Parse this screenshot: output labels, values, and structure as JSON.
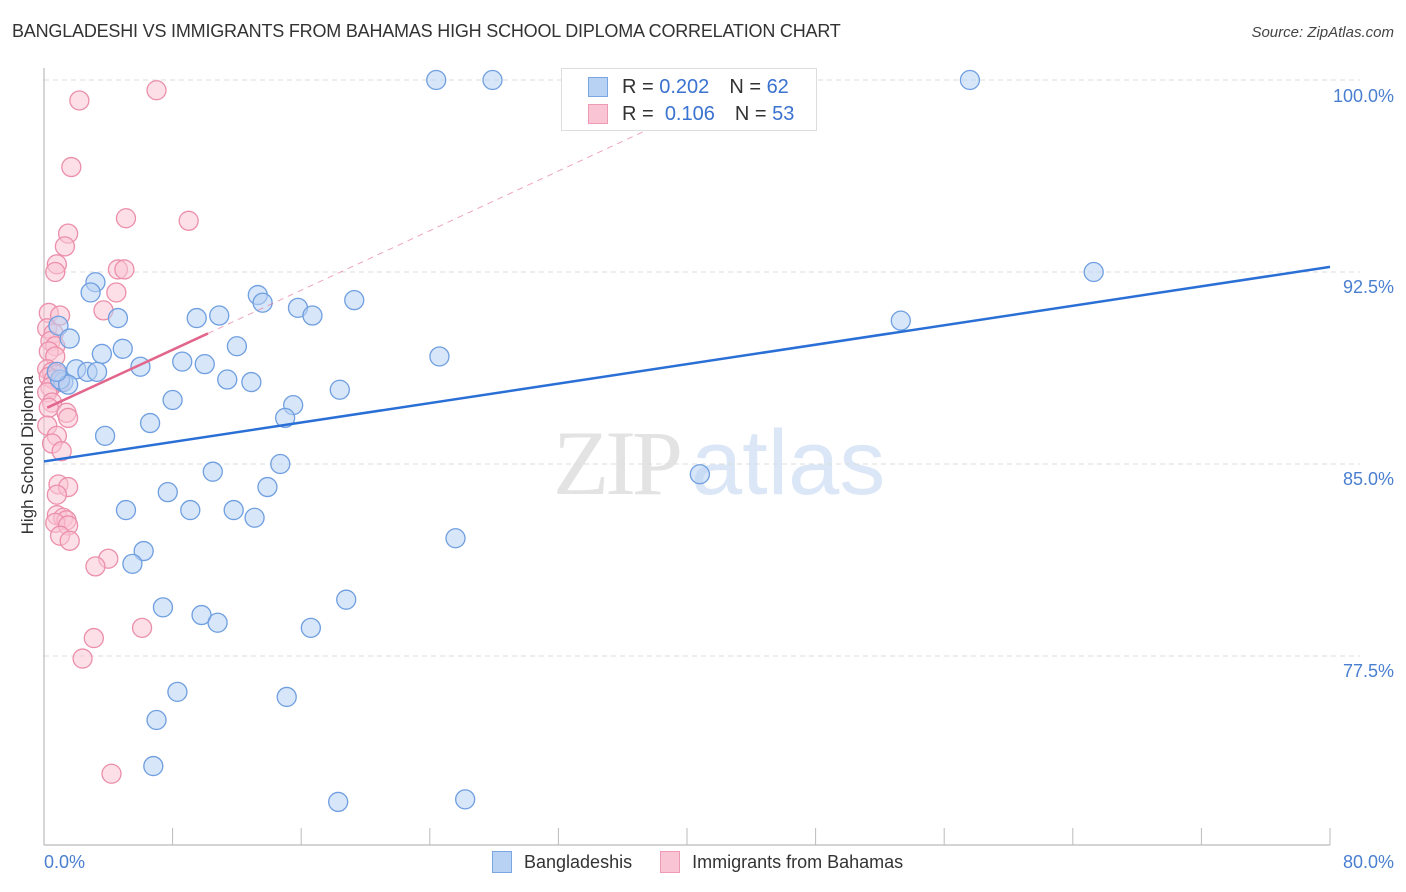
{
  "header": {
    "title": "BANGLADESHI VS IMMIGRANTS FROM BAHAMAS HIGH SCHOOL DIPLOMA CORRELATION CHART",
    "source": "Source: ZipAtlas.com"
  },
  "watermark": {
    "zip": "ZIP",
    "atlas": "atlas"
  },
  "legend": {
    "rows": [
      {
        "r_label": "R =",
        "r_value": "0.202",
        "n_label": "N =",
        "n_value": "62",
        "color": "#b8d2f4"
      },
      {
        "r_label": "R =",
        "r_value": "0.106",
        "n_label": "N =",
        "n_value": "53",
        "color": "#f9c4d4"
      }
    ],
    "bottom": [
      {
        "label": "Bangladeshis",
        "color": "#b8d2f4"
      },
      {
        "label": "Immigrants from Bahamas",
        "color": "#f9c4d4"
      }
    ]
  },
  "axes": {
    "ylabel": "High School Diploma",
    "yticks": [
      "100.0%",
      "92.5%",
      "85.0%",
      "77.5%"
    ],
    "xticks": [
      "0.0%",
      "80.0%"
    ]
  },
  "colors": {
    "blue_fill": "#b8d2f4",
    "blue_stroke": "#6f9fe0",
    "blue_line": "#2a6fd6",
    "pink_fill": "#f9c4d4",
    "pink_stroke": "#ec8fab",
    "pink_line": "#e2658c",
    "tick_text": "#4a7fd0"
  },
  "chart_data": {
    "type": "scatter",
    "title": "BANGLADESHI VS IMMIGRANTS FROM BAHAMAS HIGH SCHOOL DIPLOMA CORRELATION CHART",
    "xlabel": "",
    "ylabel": "High School Diploma",
    "xlim": [
      0,
      80
    ],
    "ylim": [
      70.5,
      100.5
    ],
    "x_ticks": [
      0,
      80
    ],
    "y_ticks": [
      77.5,
      85.0,
      92.5,
      100.0
    ],
    "grid": "horizontal dashed",
    "legend_position": "top center (R/N box) and bottom center",
    "series": [
      {
        "name": "Bangladeshis",
        "R": 0.202,
        "N": 62,
        "trend": {
          "x": [
            0,
            80
          ],
          "y": [
            85.1,
            92.7
          ]
        },
        "points": [
          [
            24.4,
            100.0
          ],
          [
            27.9,
            100.0
          ],
          [
            57.6,
            100.0
          ],
          [
            65.3,
            92.5
          ],
          [
            53.3,
            90.6
          ],
          [
            3.2,
            92.1
          ],
          [
            2.9,
            91.7
          ],
          [
            4.6,
            90.7
          ],
          [
            0.9,
            90.4
          ],
          [
            1.6,
            89.9
          ],
          [
            3.6,
            89.3
          ],
          [
            4.9,
            89.5
          ],
          [
            2.0,
            88.7
          ],
          [
            2.7,
            88.6
          ],
          [
            1.2,
            88.2
          ],
          [
            6.0,
            88.8
          ],
          [
            8.6,
            89.0
          ],
          [
            10.0,
            88.9
          ],
          [
            9.5,
            90.7
          ],
          [
            10.9,
            90.8
          ],
          [
            13.3,
            91.6
          ],
          [
            13.6,
            91.3
          ],
          [
            15.8,
            91.1
          ],
          [
            16.7,
            90.8
          ],
          [
            19.3,
            91.4
          ],
          [
            12.0,
            89.6
          ],
          [
            11.4,
            88.3
          ],
          [
            12.9,
            88.2
          ],
          [
            18.4,
            87.9
          ],
          [
            24.6,
            89.2
          ],
          [
            8.0,
            87.5
          ],
          [
            15.5,
            87.3
          ],
          [
            15.0,
            86.8
          ],
          [
            6.6,
            86.6
          ],
          [
            3.8,
            86.1
          ],
          [
            10.5,
            84.7
          ],
          [
            14.7,
            85.0
          ],
          [
            13.9,
            84.1
          ],
          [
            7.7,
            83.9
          ],
          [
            9.1,
            83.2
          ],
          [
            5.1,
            83.2
          ],
          [
            11.8,
            83.2
          ],
          [
            13.1,
            82.9
          ],
          [
            25.6,
            82.1
          ],
          [
            40.8,
            84.6
          ],
          [
            6.2,
            81.6
          ],
          [
            5.5,
            81.1
          ],
          [
            18.8,
            79.7
          ],
          [
            7.4,
            79.4
          ],
          [
            9.8,
            79.1
          ],
          [
            10.8,
            78.8
          ],
          [
            16.6,
            78.6
          ],
          [
            8.3,
            76.1
          ],
          [
            15.1,
            75.9
          ],
          [
            7.0,
            75.0
          ],
          [
            6.8,
            73.2
          ],
          [
            18.3,
            71.8
          ],
          [
            26.2,
            71.9
          ],
          [
            1.0,
            88.3
          ],
          [
            1.5,
            88.1
          ],
          [
            0.8,
            88.6
          ],
          [
            3.3,
            88.6
          ]
        ]
      },
      {
        "name": "Immigrants from Bahamas",
        "R": 0.106,
        "N": 53,
        "trend": {
          "x": [
            0.2,
            10.2
          ],
          "y": [
            87.2,
            90.1
          ]
        },
        "trend_extension_dashed": {
          "x": [
            10.2,
            37.7
          ],
          "y": [
            90.1,
            98.1
          ]
        },
        "points": [
          [
            2.2,
            99.2
          ],
          [
            7.0,
            99.6
          ],
          [
            1.7,
            96.6
          ],
          [
            5.1,
            94.6
          ],
          [
            9.0,
            94.5
          ],
          [
            1.5,
            94.0
          ],
          [
            1.3,
            93.5
          ],
          [
            0.8,
            92.8
          ],
          [
            0.7,
            92.5
          ],
          [
            4.6,
            92.6
          ],
          [
            5.0,
            92.6
          ],
          [
            4.5,
            91.7
          ],
          [
            3.7,
            91.0
          ],
          [
            0.3,
            90.9
          ],
          [
            1.0,
            90.8
          ],
          [
            0.2,
            90.3
          ],
          [
            0.6,
            90.1
          ],
          [
            0.4,
            89.8
          ],
          [
            0.7,
            89.6
          ],
          [
            0.3,
            89.4
          ],
          [
            0.7,
            89.2
          ],
          [
            0.2,
            88.7
          ],
          [
            0.5,
            88.6
          ],
          [
            0.8,
            88.5
          ],
          [
            0.3,
            88.4
          ],
          [
            0.6,
            88.3
          ],
          [
            1.0,
            88.2
          ],
          [
            0.4,
            88.0
          ],
          [
            0.2,
            87.8
          ],
          [
            0.5,
            87.4
          ],
          [
            0.3,
            87.2
          ],
          [
            1.4,
            87.0
          ],
          [
            1.5,
            86.8
          ],
          [
            0.2,
            86.5
          ],
          [
            0.8,
            86.1
          ],
          [
            0.5,
            85.8
          ],
          [
            1.1,
            85.5
          ],
          [
            0.9,
            84.2
          ],
          [
            1.5,
            84.1
          ],
          [
            0.8,
            83.8
          ],
          [
            0.8,
            83.0
          ],
          [
            1.2,
            82.9
          ],
          [
            1.4,
            82.8
          ],
          [
            0.7,
            82.7
          ],
          [
            1.5,
            82.6
          ],
          [
            1.0,
            82.2
          ],
          [
            1.6,
            82.0
          ],
          [
            4.0,
            81.3
          ],
          [
            3.2,
            81.0
          ],
          [
            6.1,
            78.6
          ],
          [
            3.1,
            78.2
          ],
          [
            2.4,
            77.4
          ],
          [
            4.2,
            72.9
          ]
        ]
      }
    ]
  }
}
